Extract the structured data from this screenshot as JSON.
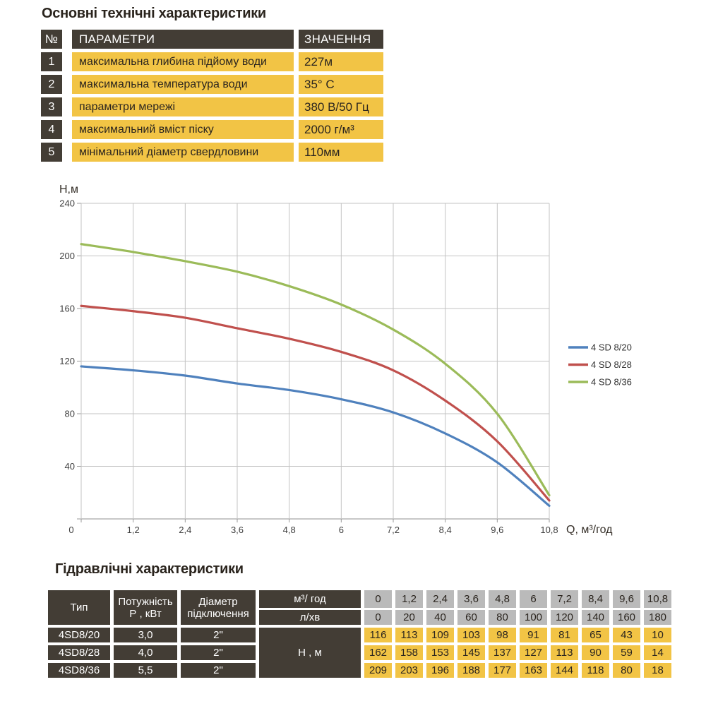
{
  "titles": {
    "main": "Основні технічні характеристики",
    "hydraulics": "Гідравлічні характеристики"
  },
  "spec_table": {
    "headers": {
      "num": "№",
      "param": "ПАРАМЕТРИ",
      "value": "ЗНАЧЕННЯ"
    },
    "rows": [
      {
        "num": "1",
        "param": "максимальна глибина підйому води",
        "value": "227м"
      },
      {
        "num": "2",
        "param": "максимальна температура води",
        "value": "35° С"
      },
      {
        "num": "3",
        "param": "параметри мережі",
        "value": "380 В/50 Гц"
      },
      {
        "num": "4",
        "param": "максимальний вміст піску",
        "value": "2000 г/м³"
      },
      {
        "num": "5",
        "param": "мінімальний діаметр свердловини",
        "value": "110мм"
      }
    ]
  },
  "chart_data": {
    "type": "line",
    "title": "",
    "xlabel": "Q,  м³/год",
    "ylabel": "Н,м",
    "x": [
      0,
      1.2,
      2.4,
      3.6,
      4.8,
      6,
      7.2,
      8.4,
      9.6,
      10.8
    ],
    "x_tick_labels": [
      "0",
      "1,2",
      "2,4",
      "3,6",
      "4,8",
      "6",
      "7,2",
      "8,4",
      "9,6",
      "10,8"
    ],
    "xlim": [
      0,
      10.8
    ],
    "ylim": [
      0,
      240
    ],
    "ytick_step": 40,
    "grid": true,
    "legend_position": "right",
    "series": [
      {
        "name": "4 SD 8/20",
        "color": "#4f81bd",
        "values": [
          116,
          113,
          109,
          103,
          98,
          91,
          81,
          65,
          43,
          10
        ]
      },
      {
        "name": "4 SD 8/28",
        "color": "#c0504d",
        "values": [
          162,
          158,
          153,
          145,
          137,
          127,
          113,
          90,
          59,
          14
        ]
      },
      {
        "name": "4 SD 8/36",
        "color": "#9bbb59",
        "values": [
          209,
          203,
          196,
          188,
          177,
          163,
          144,
          118,
          80,
          18
        ]
      }
    ]
  },
  "hydraulics_table": {
    "headers": {
      "type": "Тип",
      "power_line1": "Потужність",
      "power_line2": "Р , кВт",
      "diameter_line1": "Діаметр",
      "diameter_line2": "підключення",
      "flow_m3": "м³/ год",
      "flow_l": "л/хв",
      "head": "Н , м"
    },
    "flow_m3_values": [
      "0",
      "1,2",
      "2,4",
      "3,6",
      "4,8",
      "6",
      "7,2",
      "8,4",
      "9,6",
      "10,8"
    ],
    "flow_l_values": [
      "0",
      "20",
      "40",
      "60",
      "80",
      "100",
      "120",
      "140",
      "160",
      "180"
    ],
    "rows": [
      {
        "type": "4SD8/20",
        "power": "3,0",
        "diameter": "2\"",
        "head_values": [
          "116",
          "113",
          "109",
          "103",
          "98",
          "91",
          "81",
          "65",
          "43",
          "10"
        ]
      },
      {
        "type": "4SD8/28",
        "power": "4,0",
        "diameter": "2\"",
        "head_values": [
          "162",
          "158",
          "153",
          "145",
          "137",
          "127",
          "113",
          "90",
          "59",
          "14"
        ]
      },
      {
        "type": "4SD8/36",
        "power": "5,5",
        "diameter": "2\"",
        "head_values": [
          "209",
          "203",
          "196",
          "188",
          "177",
          "163",
          "144",
          "118",
          "80",
          "18"
        ]
      }
    ]
  },
  "colors": {
    "accent_yellow": "#f2c445",
    "dark_header": "#433d35",
    "gray_cell": "#bababa",
    "series_blue": "#4f81bd",
    "series_red": "#c0504d",
    "series_green": "#9bbb59"
  }
}
